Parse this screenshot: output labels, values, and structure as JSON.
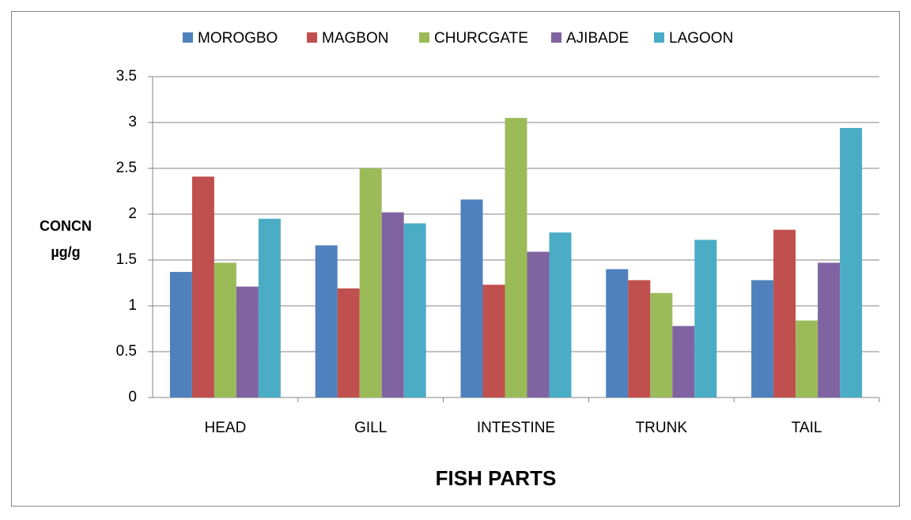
{
  "chart_data": {
    "type": "bar",
    "x_label": "FISH PARTS",
    "y_label": [
      "CONCN",
      "µg/g"
    ],
    "categories": [
      "HEAD",
      "GILL",
      "INTESTINE",
      "TRUNK",
      "TAIL"
    ],
    "series": [
      {
        "name": "MOROGBO",
        "color": "#4f81bd",
        "values": [
          1.37,
          1.66,
          2.16,
          1.4,
          1.28
        ]
      },
      {
        "name": "MAGBON",
        "color": "#c0504d",
        "values": [
          2.41,
          1.19,
          1.23,
          1.28,
          1.83
        ]
      },
      {
        "name": "CHURCGATE",
        "color": "#9bbb59",
        "values": [
          1.47,
          2.5,
          3.05,
          1.14,
          0.84
        ]
      },
      {
        "name": "AJIBADE",
        "color": "#8064a2",
        "values": [
          1.21,
          2.02,
          1.59,
          0.78,
          1.47
        ]
      },
      {
        "name": "LAGOON",
        "color": "#4bacc6",
        "values": [
          1.95,
          1.9,
          1.8,
          1.72,
          2.94
        ]
      }
    ],
    "ylim": [
      0,
      3.5
    ],
    "yticks": [
      0,
      0.5,
      1,
      1.5,
      2,
      2.5,
      3,
      3.5
    ],
    "grid": true,
    "legend": "top"
  }
}
